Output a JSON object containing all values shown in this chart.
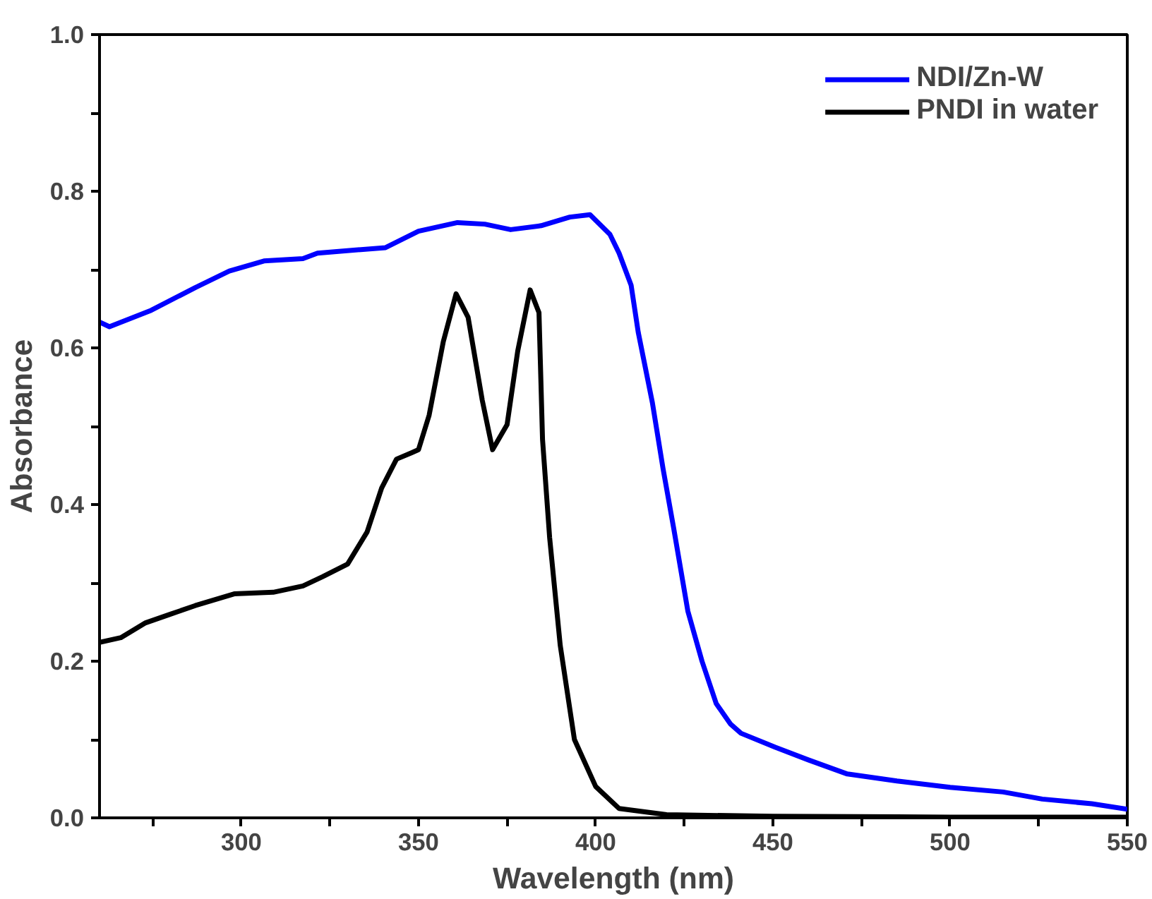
{
  "chart_data": {
    "type": "line",
    "xlabel": "Wavelength (nm)",
    "ylabel": "Absorbance",
    "xlim": [
      260,
      550
    ],
    "ylim": [
      0,
      1.0
    ],
    "xticks": [
      {
        "value": 275,
        "label": null
      },
      300,
      {
        "value": 325,
        "label": null
      },
      350,
      {
        "value": 375,
        "label": null
      },
      400,
      {
        "value": 425,
        "label": null
      },
      450,
      {
        "value": 475,
        "label": null
      },
      500,
      {
        "value": 525,
        "label": null
      },
      550
    ],
    "yticks": [
      {
        "value": 0,
        "label": "0.0"
      },
      {
        "value": 0.1,
        "label": null
      },
      0.2,
      {
        "value": 0.3,
        "label": null
      },
      0.4,
      {
        "value": 0.5,
        "label": null
      },
      0.6,
      {
        "value": 0.7,
        "label": null
      },
      0.8,
      {
        "value": 0.9,
        "label": null
      },
      {
        "value": 1.0,
        "label": "1.0"
      }
    ],
    "grid": false,
    "legend": "top right",
    "line_style": "solid",
    "marker": "none",
    "series": [
      {
        "name": "NDI/Zn-W",
        "color": "#0000ff",
        "x": [
          260,
          262.8,
          274.6,
          287,
          296.6,
          306.4,
          317.4,
          321.5,
          340.7,
          350,
          361,
          368.7,
          376,
          384.6,
          392.7,
          398.4,
          404,
          406.6,
          410,
          412,
          416,
          419,
          422,
          426,
          430,
          434,
          438,
          441,
          450.7,
          460,
          471,
          485,
          500,
          515,
          526,
          540,
          550
        ],
        "values": [
          0.633,
          0.627,
          0.648,
          0.677,
          0.698,
          0.711,
          0.714,
          0.721,
          0.728,
          0.749,
          0.76,
          0.758,
          0.751,
          0.756,
          0.767,
          0.77,
          0.745,
          0.721,
          0.68,
          0.62,
          0.53,
          0.446,
          0.37,
          0.264,
          0.2,
          0.146,
          0.12,
          0.108,
          0.09,
          0.074,
          0.056,
          0.047,
          0.039,
          0.033,
          0.024,
          0.018,
          0.011
        ]
      },
      {
        "name": "PNDI in water",
        "color": "#000000",
        "x": [
          260,
          266,
          273,
          280,
          287,
          298,
          309,
          317.4,
          323,
          330,
          335.5,
          339.6,
          343.8,
          348,
          350,
          353,
          357,
          360.6,
          364,
          368,
          370.9,
          375,
          378,
          381.5,
          384,
          385,
          387,
          390,
          394,
          400,
          406.6,
          420,
          450,
          500,
          550
        ],
        "values": [
          0.224,
          0.23,
          0.249,
          0.26,
          0.271,
          0.286,
          0.288,
          0.296,
          0.308,
          0.324,
          0.365,
          0.421,
          0.458,
          0.466,
          0.47,
          0.514,
          0.608,
          0.669,
          0.639,
          0.533,
          0.47,
          0.502,
          0.596,
          0.674,
          0.645,
          0.483,
          0.358,
          0.22,
          0.1,
          0.04,
          0.012,
          0.004,
          0.002,
          0.001,
          0.001
        ]
      }
    ]
  }
}
